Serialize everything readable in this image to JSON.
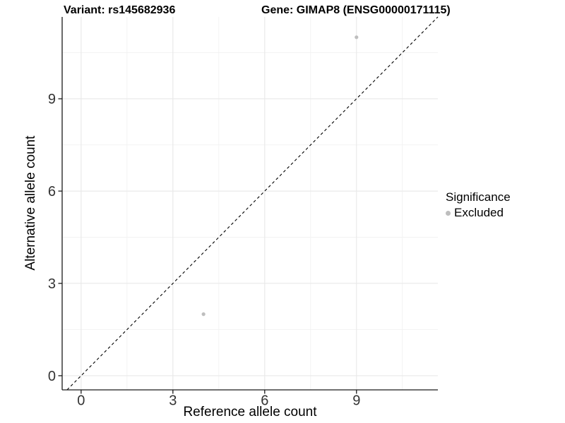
{
  "chart_data": {
    "type": "scatter",
    "title_left": "Variant: rs145682936",
    "title_right": "Gene: GIMAP8 (ENSG00000171115)",
    "xlabel": "Reference allele count",
    "ylabel": "Alternative allele count",
    "xlim": [
      -0.62,
      11.66
    ],
    "ylim": [
      -0.46,
      11.66
    ],
    "x_major_ticks": [
      0,
      3,
      6,
      9
    ],
    "x_minor_ticks": [
      1.5,
      4.5,
      7.5,
      10.5
    ],
    "y_major_ticks": [
      0,
      3,
      6,
      9
    ],
    "y_minor_ticks": [
      1.5,
      4.5,
      7.5,
      10.5
    ],
    "grid": true,
    "points": [
      {
        "x": 4,
        "y": 2,
        "series": "Excluded"
      },
      {
        "x": 9,
        "y": 11,
        "series": "Excluded"
      }
    ],
    "identity_line": {
      "slope": 1,
      "intercept": 0,
      "style": "dashed",
      "color": "#000000"
    },
    "legend": {
      "title": "Significance",
      "position": "right",
      "items": [
        {
          "label": "Excluded",
          "color": "#bebebe"
        }
      ]
    },
    "point_radius": 2.6,
    "colors": {
      "point": "#bebebe",
      "grid_major": "#e8e8e8",
      "grid_minor": "#f2f2f2",
      "axis": "#1a1a1a",
      "tick_label": "#333333",
      "title": "#000000"
    }
  }
}
